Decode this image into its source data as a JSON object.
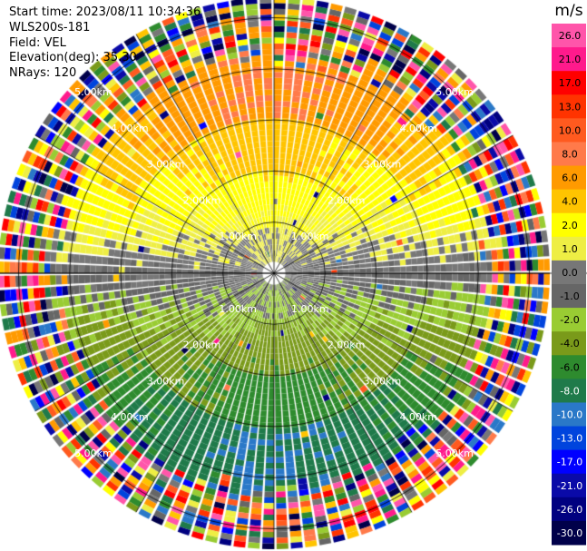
{
  "header": {
    "start_time": "Start time: 2023/08/11 10:34:36",
    "instrument": "WLS200s-181",
    "field": "Field: VEL",
    "elevation": "Elevation(deg): 35.30",
    "nrays": "NRays: 120"
  },
  "chart_data": {
    "type": "heatmap",
    "projection": "polar-ppi",
    "field": "VEL",
    "units": "m/s",
    "rays": 120,
    "elevation_deg": 35.3,
    "range_rings_km": [
      1.0,
      2.0,
      3.0,
      4.0,
      5.0
    ],
    "range_ring_labels": [
      "1.00km",
      "2.00km",
      "3.00km",
      "4.00km",
      "5.00km"
    ],
    "max_range_km": 5.4,
    "spokes_deg": [
      0,
      30,
      60,
      90,
      120,
      150,
      180,
      210,
      240,
      270,
      300,
      330
    ],
    "colorbar": {
      "unit_label": "m/s",
      "ticks": [
        "26.0",
        "21.0",
        "17.0",
        "13.0",
        "10.0",
        "8.0",
        "6.0",
        "4.0",
        "2.0",
        "1.0",
        "0.0",
        "-1.0",
        "-2.0",
        "-4.0",
        "-6.0",
        "-8.0",
        "-10.0",
        "-13.0",
        "-17.0",
        "-21.0",
        "-26.0",
        "-30.0"
      ],
      "boundaries": [
        30,
        26,
        21,
        17,
        13,
        10,
        8,
        6,
        4,
        2,
        1,
        0,
        -1,
        -2,
        -4,
        -6,
        -8,
        -10,
        -13,
        -17,
        -21,
        -26,
        -30
      ],
      "colors": [
        "#ff55aa",
        "#ff1a8c",
        "#ff0000",
        "#ff3300",
        "#ff5a1f",
        "#ff7a4a",
        "#ff9a00",
        "#ffc400",
        "#ffff00",
        "#eeee44",
        "#777777",
        "#666666",
        "#99cc33",
        "#7a9a1a",
        "#2e8b2e",
        "#1f7a4a",
        "#2a78c8",
        "#0044dd",
        "#0000ff",
        "#0a0aa8",
        "#000080",
        "#00004a"
      ]
    },
    "velocity_pattern": {
      "north_far_ms": 8.0,
      "north_mid_ms": 5.0,
      "north_near_ms": 2.0,
      "center_ms": 0.0,
      "south_near_ms": -2.0,
      "south_mid_ms": -5.0,
      "south_far_ms": -8.0,
      "noise_beyond_km": 4.4
    },
    "grid": true
  }
}
